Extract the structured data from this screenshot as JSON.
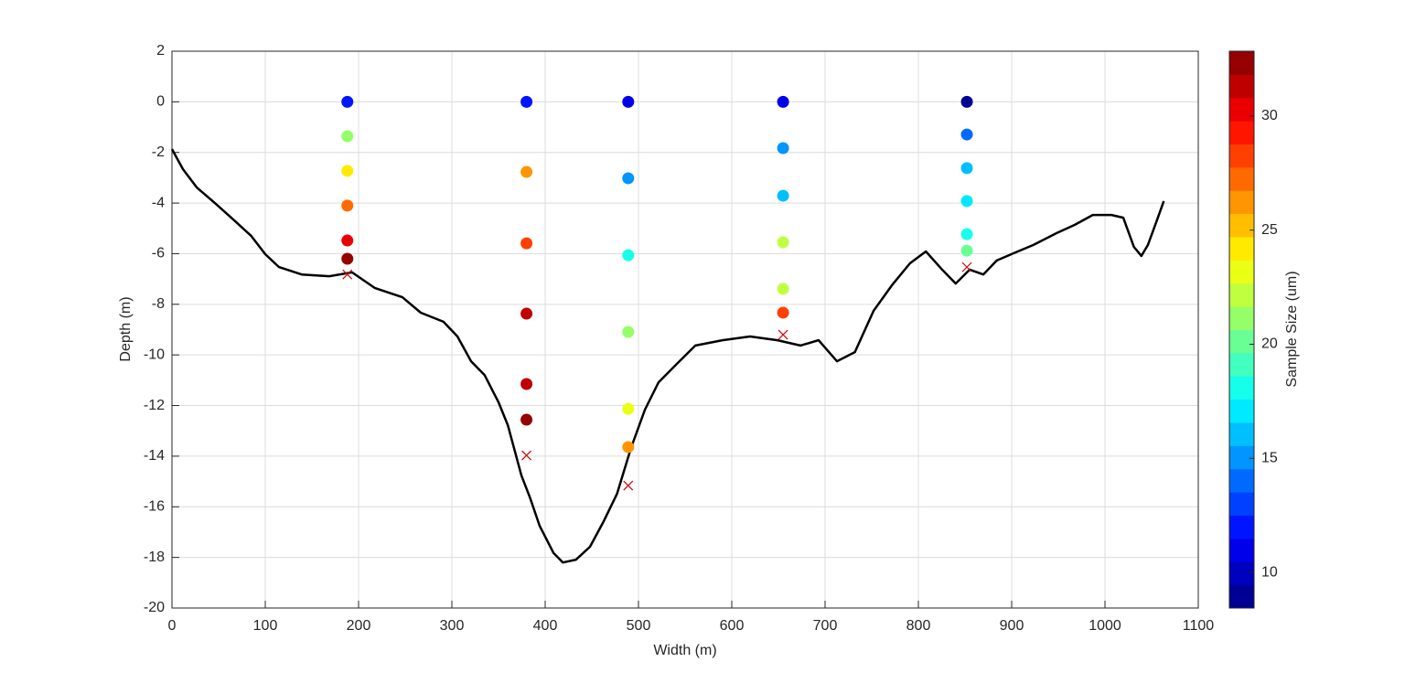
{
  "chart_data": {
    "type": "scatter",
    "x_label": "Width (m)",
    "y_label": "Depth (m)",
    "xlim": [
      0,
      1100
    ],
    "ylim": [
      -20,
      2
    ],
    "xticks": [
      0,
      100,
      200,
      300,
      400,
      500,
      600,
      700,
      800,
      900,
      1000,
      1100
    ],
    "yticks": [
      2,
      0,
      -2,
      -4,
      -6,
      -8,
      -10,
      -12,
      -14,
      -16,
      -18,
      -20
    ],
    "grid": true,
    "profile": {
      "color": "#000000",
      "x": [
        0,
        11.8,
        26.5,
        46,
        65.7,
        85,
        100,
        114.7,
        139,
        168.6,
        193,
        217.6,
        247,
        266.7,
        291,
        306,
        320.6,
        335,
        350,
        360,
        374.5,
        384,
        394,
        409,
        419,
        433,
        448,
        462.7,
        477,
        492,
        507,
        521.6,
        541,
        561,
        590,
        619.6,
        649,
        673.5,
        693,
        712.7,
        732,
        752,
        771.6,
        791,
        808,
        825.5,
        840,
        855,
        869.6,
        884,
        904,
        923,
        948,
        967.6,
        987,
        1007,
        1019.6,
        1031,
        1039,
        1046,
        1056,
        1063
      ],
      "y": [
        -1.87,
        -2.66,
        -3.38,
        -4.0,
        -4.65,
        -5.3,
        -6.02,
        -6.53,
        -6.82,
        -6.89,
        -6.74,
        -7.36,
        -7.72,
        -8.33,
        -8.69,
        -9.27,
        -10.25,
        -10.79,
        -11.87,
        -12.78,
        -14.76,
        -15.67,
        -16.75,
        -17.83,
        -18.2,
        -18.09,
        -17.58,
        -16.57,
        -15.49,
        -13.68,
        -12.16,
        -11.08,
        -10.36,
        -9.63,
        -9.42,
        -9.27,
        -9.42,
        -9.63,
        -9.42,
        -10.25,
        -9.89,
        -8.26,
        -7.25,
        -6.38,
        -5.91,
        -6.63,
        -7.18,
        -6.63,
        -6.82,
        -6.27,
        -5.95,
        -5.66,
        -5.19,
        -4.86,
        -4.47,
        -4.47,
        -4.58,
        -5.73,
        -6.09,
        -5.66,
        -4.65,
        -3.92
      ]
    },
    "samples": {
      "x": [
        188,
        188,
        188,
        188,
        188,
        188,
        380,
        380,
        380,
        380,
        380,
        380,
        489,
        489,
        489,
        489,
        489,
        489,
        655,
        655,
        655,
        655,
        655,
        655,
        852,
        852,
        852,
        852,
        852,
        852
      ],
      "y": [
        0,
        -1.36,
        -2.73,
        -4.1,
        -5.48,
        -6.2,
        0,
        -2.77,
        -5.59,
        -8.37,
        -11.15,
        -12.56,
        0,
        -3.02,
        -6.06,
        -9.09,
        -12.13,
        -13.64,
        0,
        -1.83,
        -3.71,
        -5.55,
        -7.39,
        -8.33,
        0,
        -1.29,
        -2.62,
        -3.92,
        -5.23,
        -5.88
      ],
      "size": [
        12,
        21,
        24.5,
        27.5,
        30,
        32,
        12,
        26,
        28.5,
        31,
        31,
        32.5,
        10.5,
        15.5,
        18,
        21,
        23.5,
        26,
        11,
        15,
        16.5,
        22.5,
        22.5,
        28.5,
        9,
        14,
        16,
        17.5,
        18.5,
        20
      ]
    },
    "bed_points": {
      "color": "#d00000",
      "x": [
        188,
        380,
        489,
        655,
        852
      ],
      "y": [
        -6.82,
        -13.97,
        -15.16,
        -9.2,
        -6.53
      ]
    },
    "colorbar": {
      "label": "Sample Size (um)",
      "colormap": "jet",
      "levels": 24,
      "lim": [
        8.44,
        32.84
      ],
      "ticks": [
        10,
        15,
        20,
        25,
        30
      ]
    }
  }
}
